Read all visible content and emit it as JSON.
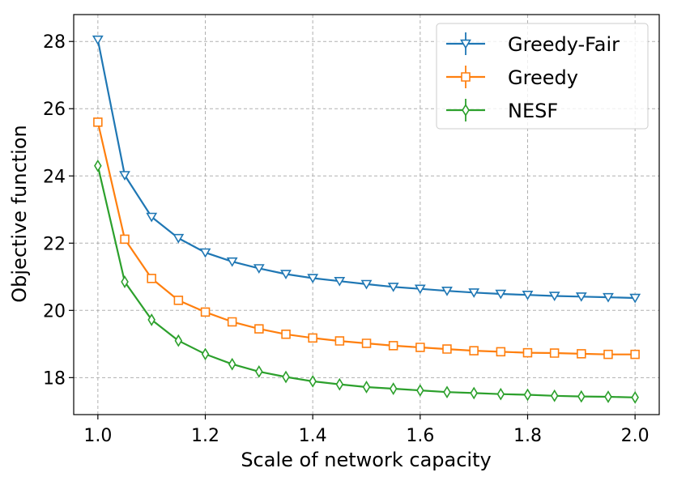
{
  "chart_data": {
    "type": "line",
    "title": "",
    "xlabel": "Scale of network capacity",
    "ylabel": "Objective function",
    "xlim": [
      0.955,
      2.045
    ],
    "ylim": [
      16.9,
      28.8
    ],
    "grid": true,
    "legend_position": "top-right",
    "x": [
      1.0,
      1.05,
      1.1,
      1.15,
      1.2,
      1.25,
      1.3,
      1.35,
      1.4,
      1.45,
      1.5,
      1.55,
      1.6,
      1.65,
      1.7,
      1.75,
      1.8,
      1.85,
      1.9,
      1.95,
      2.0
    ],
    "xticks": [
      1.0,
      1.2,
      1.4,
      1.6,
      1.8,
      2.0
    ],
    "xtick_labels": [
      "1.0",
      "1.2",
      "1.4",
      "1.6",
      "1.8",
      "2.0"
    ],
    "yticks": [
      18,
      20,
      22,
      24,
      26,
      28
    ],
    "ytick_labels": [
      "18",
      "20",
      "22",
      "24",
      "26",
      "28"
    ],
    "series": [
      {
        "name": "Greedy-Fair",
        "color": "#1f77b4",
        "marker": "triangle-down",
        "values": [
          28.05,
          24.02,
          22.78,
          22.15,
          21.72,
          21.45,
          21.25,
          21.08,
          20.96,
          20.87,
          20.78,
          20.7,
          20.64,
          20.58,
          20.53,
          20.49,
          20.46,
          20.43,
          20.41,
          20.39,
          20.37
        ]
      },
      {
        "name": "Greedy",
        "color": "#ff7f0e",
        "marker": "square",
        "values": [
          25.6,
          22.12,
          20.95,
          20.3,
          19.95,
          19.66,
          19.45,
          19.29,
          19.18,
          19.09,
          19.02,
          18.95,
          18.9,
          18.85,
          18.8,
          18.77,
          18.74,
          18.73,
          18.71,
          18.69,
          18.69
        ]
      },
      {
        "name": "NESF",
        "color": "#2ca02c",
        "marker": "diamond",
        "values": [
          24.3,
          20.85,
          19.72,
          19.1,
          18.7,
          18.4,
          18.18,
          18.02,
          17.89,
          17.8,
          17.72,
          17.67,
          17.62,
          17.57,
          17.54,
          17.51,
          17.49,
          17.46,
          17.44,
          17.43,
          17.41
        ]
      }
    ]
  }
}
